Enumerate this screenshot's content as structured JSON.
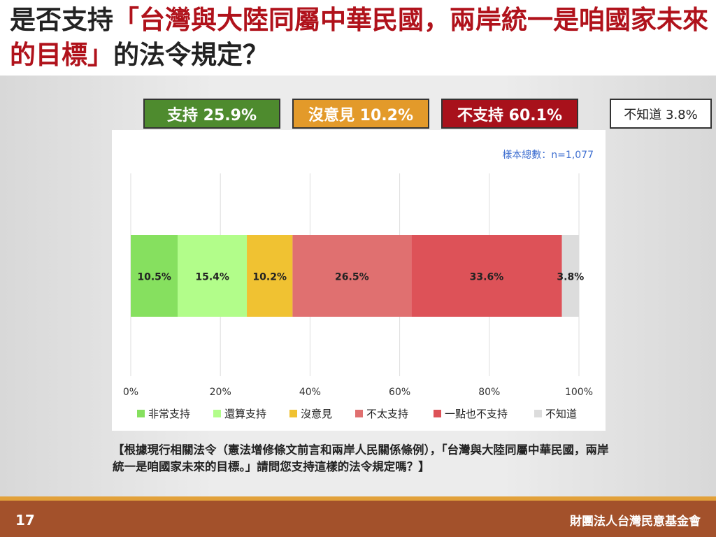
{
  "title": {
    "prefix": "是否支持",
    "quote": "「台灣與大陸同屬中華民國，兩岸統一是咱國家未來的目標」",
    "suffix": "的法令規定？"
  },
  "summary": {
    "support": "支持 25.9%",
    "neutral": "沒意見 10.2%",
    "oppose": "不支持 60.1%",
    "unknown": "不知道 3.8%"
  },
  "colors": {
    "support_box": "#4e8b2e",
    "neutral_box": "#e39a2a",
    "oppose_box": "#a8111b",
    "footer": "#a3512b"
  },
  "question": "【根據現行相關法令（憲法增修條文前言和兩岸人民關係條例），「台灣與大陸同屬中華民國，兩岸統一是咱國家未來的目標。」請問您支持這樣的法令規定嗎？】",
  "footer": {
    "page": "17",
    "org": "財團法人台灣民意基金會"
  },
  "chart_data": {
    "type": "bar",
    "orientation": "horizontal-stacked",
    "annotation": "樣本總數：n=1,077",
    "xlim": [
      0,
      100
    ],
    "xticks": [
      "0%",
      "20%",
      "40%",
      "60%",
      "80%",
      "100%"
    ],
    "grid": true,
    "legend_position": "bottom",
    "series": [
      {
        "name": "非常支持",
        "value": 10.5,
        "label": "10.5%",
        "color": "#86e05f"
      },
      {
        "name": "還算支持",
        "value": 15.4,
        "label": "15.4%",
        "color": "#b2fd8a"
      },
      {
        "name": "沒意見",
        "value": 10.2,
        "label": "10.2%",
        "color": "#f0c232"
      },
      {
        "name": "不太支持",
        "value": 26.5,
        "label": "26.5%",
        "color": "#e07070"
      },
      {
        "name": "一點也不支持",
        "value": 33.6,
        "label": "33.6%",
        "color": "#dd5258"
      },
      {
        "name": "不知道",
        "value": 3.8,
        "label": "3.8%",
        "color": "#dcdcdc"
      }
    ]
  }
}
